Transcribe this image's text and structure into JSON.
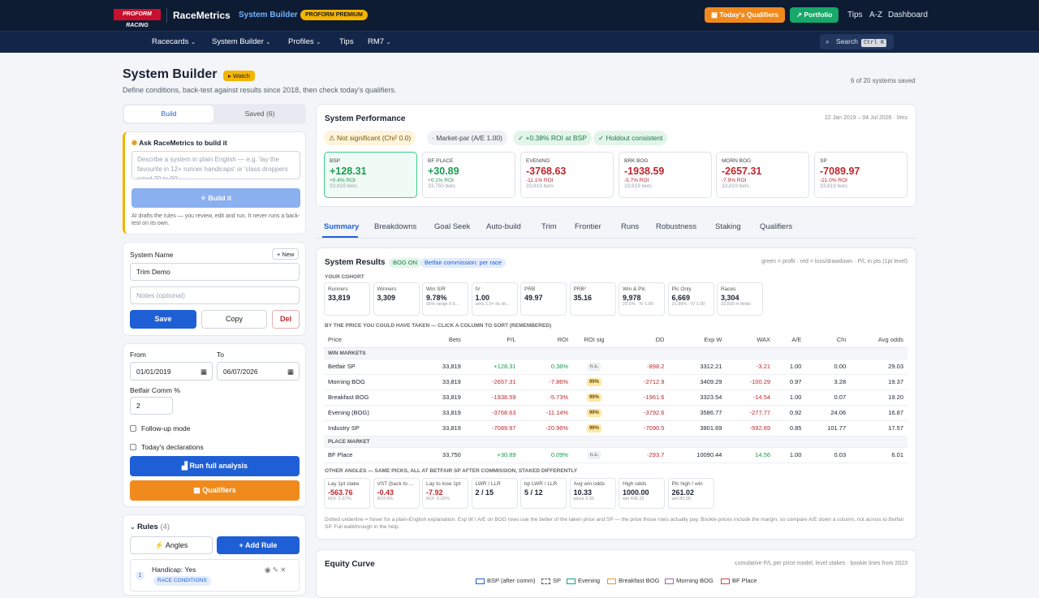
{
  "top": {
    "logo": "PROFORM RACING",
    "brand": "RaceMetrics",
    "section": "System Builder",
    "premium": "PROFORM PREMIUM",
    "todays_qualifiers": "Today's Qualifiers",
    "portfolio": "Portfolio",
    "links": [
      "Tips",
      "A-Z",
      "Dashboard"
    ]
  },
  "nav": {
    "items": [
      "Racecards",
      "System Builder",
      "Profiles",
      "Tips",
      "RM7"
    ],
    "search": "Search",
    "kbd": "Ctrl K"
  },
  "page": {
    "title": "System Builder",
    "watch": "Watch",
    "subtitle": "Define conditions, back-test against results since 2018, then check today's qualifiers.",
    "saved_count": "6 of 20 systems saved"
  },
  "left": {
    "tab_build": "Build",
    "tab_saved": "Saved (6)",
    "ask_title": "Ask RaceMetrics to build it",
    "ask_placeholder": "Describe a system in plain English — e.g. 'lay the favourite in 12+ runner handicaps' or 'class droppers rated 70 to 90'",
    "build_btn": "Build it",
    "ai_note": "AI drafts the rules — you review, edit and run. It never runs a back-test on its own.",
    "system_name_label": "System Name",
    "new_btn": "+ New",
    "system_name": "Trim Demo",
    "notes_placeholder": "Notes (optional)",
    "save": "Save",
    "copy": "Copy",
    "del": "Del",
    "from_label": "From",
    "to_label": "To",
    "from": "01/01/2019",
    "to": "06/07/2026",
    "comm_label": "Betfair Comm %",
    "comm": "2",
    "followup": "Follow-up mode",
    "declarations": "Today's declarations",
    "run": "Run full analysis",
    "qualifiers": "Qualifiers",
    "rules_title": "Rules",
    "rules_count": "(4)",
    "angles": "Angles",
    "add_rule": "+ Add Rule",
    "rule1_num": "1",
    "rule1": "Handicap: Yes",
    "rule1_tag": "RACE CONDITIONS"
  },
  "perf": {
    "title": "System Performance",
    "range": "22 Jan 2019 – 04 Jul 2026 · 0ms",
    "pills": [
      "⚠ Not significant (Chi² 0.0)",
      "· Market-par (A/E 1.00)",
      "✓ +0.38% ROI at BSP",
      "✓ Holdout consistent"
    ],
    "kpis": [
      {
        "t": "BSP",
        "v": "+128.31",
        "r": "+0.4% ROI",
        "b": "33,819 bets",
        "pos": true
      },
      {
        "t": "BF PLACE",
        "v": "+30.89",
        "r": "+0.1% ROI",
        "b": "33,750 bets",
        "pos": true
      },
      {
        "t": "EVENING",
        "v": "-3768.63",
        "r": "-11.1% ROI",
        "b": "33,819 bets",
        "pos": false
      },
      {
        "t": "BRK BOG",
        "v": "-1938.59",
        "r": "-5.7% ROI",
        "b": "33,819 bets",
        "pos": false
      },
      {
        "t": "MORN BOG",
        "v": "-2657.31",
        "r": "-7.9% ROI",
        "b": "33,819 bets",
        "pos": false
      },
      {
        "t": "SP",
        "v": "-7089.97",
        "r": "-21.0% ROI",
        "b": "33,819 bets",
        "pos": false
      }
    ]
  },
  "tabs": [
    "Summary",
    "Breakdowns",
    "Goal Seek",
    "Auto-build",
    "Trim",
    "Frontier",
    "Runs",
    "Robustness",
    "Staking",
    "Qualifiers"
  ],
  "results": {
    "title": "System Results",
    "bog": "BOG ON",
    "commission": "Betfair commission: per race",
    "legend": "green = profit · red = loss/drawdown · P/L in pts (1pt level)",
    "cohort_label": "YOUR COHORT",
    "cohort": [
      {
        "t": "Runners",
        "v": "33,819",
        "s": ""
      },
      {
        "t": "Winners",
        "v": "3,309",
        "s": ""
      },
      {
        "t": "Win S/R",
        "v": "9.78%",
        "s": "95% range 9.5..."
      },
      {
        "t": "IV",
        "v": "1.00",
        "s": "wins 1.0× its sh..."
      },
      {
        "t": "PRB",
        "v": "49.97",
        "s": ""
      },
      {
        "t": "PRB²",
        "v": "35.16",
        "s": ""
      },
      {
        "t": "Win & Plc",
        "v": "9,978",
        "s": "29.5% · IV 1.00"
      },
      {
        "t": "Plc Only",
        "v": "6,669",
        "s": "21.86% · IV 1.00"
      },
      {
        "t": "Races",
        "v": "3,304",
        "s": "33,820 in fields"
      }
    ],
    "price_label": "BY THE PRICE YOU COULD HAVE TAKEN — CLICK A COLUMN TO SORT (REMEMBERED)",
    "headers": [
      "Price",
      "Bets",
      "P/L",
      "ROI",
      "ROI sig",
      "DD",
      "Exp W",
      "WAX",
      "A/E",
      "Chi",
      "Avg odds"
    ],
    "win_label": "WIN MARKETS",
    "place_label": "PLACE MARKET",
    "rows": [
      [
        "Betfair SP",
        "33,819",
        "+128.31",
        "0.38%",
        "n.s.",
        "-898.2",
        "3312.21",
        "-3.21",
        "1.00",
        "0.00",
        "29.03"
      ],
      [
        "Morning BOG",
        "33,819",
        "-2657.31",
        "-7.86%",
        "99%",
        "-2712.9",
        "3409.29",
        "-100.29",
        "0.97",
        "3.28",
        "19.37"
      ],
      [
        "Breakfast BOG",
        "33,819",
        "-1938.59",
        "-5.73%",
        "99%",
        "-1961.6",
        "3323.54",
        "-14.54",
        "1.00",
        "0.07",
        "19.20"
      ],
      [
        "Evening (BOG)",
        "33,819",
        "-3768.63",
        "-11.14%",
        "99%",
        "-3792.6",
        "3586.77",
        "-277.77",
        "0.92",
        "24.06",
        "16.87"
      ],
      [
        "Industry SP",
        "33,819",
        "-7089.97",
        "-20.96%",
        "99%",
        "-7090.5",
        "3901.69",
        "-592.69",
        "0.85",
        "101.77",
        "17.57"
      ]
    ],
    "place_row": [
      "BF Place",
      "33,750",
      "+30.89",
      "0.09%",
      "n.s.",
      "-293.7",
      "10090.44",
      "14.56",
      "1.00",
      "0.03",
      "6.01"
    ],
    "other_label": "OTHER ANGLES — SAME PICKS, ALL AT BETFAIR SP AFTER COMMISSION, STAKED DIFFERENTLY",
    "angles": [
      {
        "t": "Lay 1pt stake",
        "v": "-563.76",
        "s": "ROI -1.67%",
        "neg": true
      },
      {
        "t": "VST (back to ...",
        "v": "-0.43",
        "s": "ROI 0%",
        "neg": true
      },
      {
        "t": "Lay to lose 1pt",
        "v": "-7.92",
        "s": "ROI -0.02%",
        "neg": true
      },
      {
        "t": "LWR / LLR",
        "v": "2 / 15",
        "s": "",
        "neg": false
      },
      {
        "t": "bp LWR / LLR",
        "v": "5 / 12",
        "s": "",
        "neg": false
      },
      {
        "t": "Avg win odds",
        "v": "10.33",
        "s": "place 3.35",
        "neg": false
      },
      {
        "t": "High odds",
        "v": "1000.00",
        "s": "win 436.22",
        "neg": false
      },
      {
        "t": "Plc high / win",
        "v": "261.02",
        "s": "win 85.00",
        "neg": false
      }
    ],
    "footnote": "Dotted underline = hover for a plain-English explanation. Exp W / A/E on BOG rows use the better of the taken price and SP — the price those rows actually pay. Bookie prices include the margin, so compare A/E down a column, not across to Betfair SP. Full walkthrough in the help."
  },
  "equity": {
    "title": "Equity Curve",
    "note": "cumulative P/L per price model, level stakes · bookie lines from 2023",
    "series": [
      "BSP (after comm)",
      "SP",
      "Evening",
      "Breakfast BOG",
      "Morning BOG",
      "BF Place"
    ],
    "colors": [
      "#1f5fd6",
      "#555555",
      "#1aa38a",
      "#e0a020",
      "#b05cc4",
      "#d9434b"
    ]
  }
}
